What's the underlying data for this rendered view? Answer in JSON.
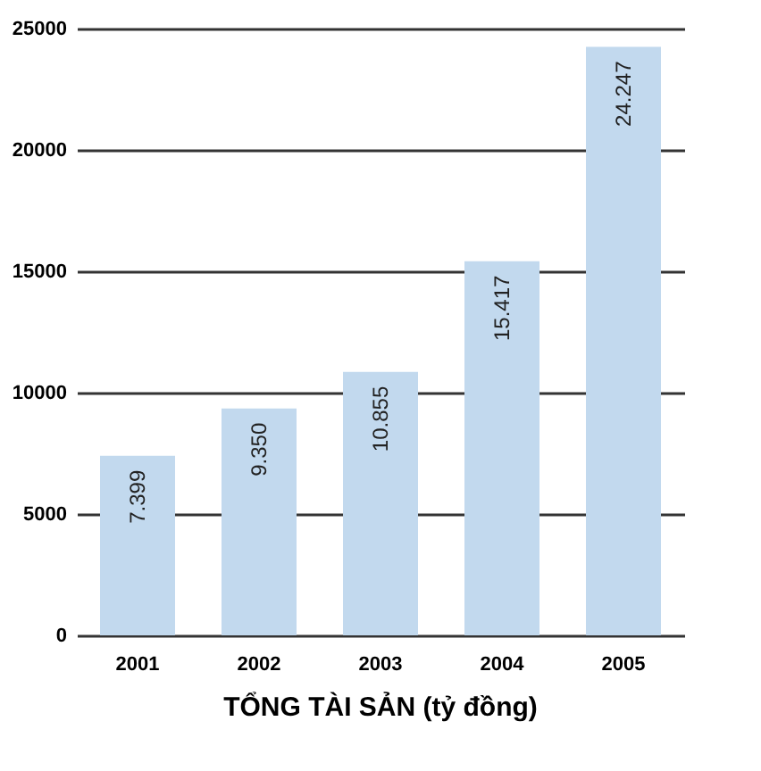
{
  "chart_data": {
    "type": "bar",
    "title": "TỔNG TÀI SẢN (tỷ đồng)",
    "categories": [
      "2001",
      "2002",
      "2003",
      "2004",
      "2005"
    ],
    "values": [
      7399,
      9350,
      10855,
      15417,
      24247
    ],
    "value_labels": [
      "7.399",
      "9.350",
      "10.855",
      "15.417",
      "24.247"
    ],
    "color": "#c2d9ee",
    "ylim": [
      0,
      25000
    ],
    "yticks": [
      0,
      5000,
      10000,
      15000,
      20000,
      25000
    ],
    "grid": "y"
  }
}
